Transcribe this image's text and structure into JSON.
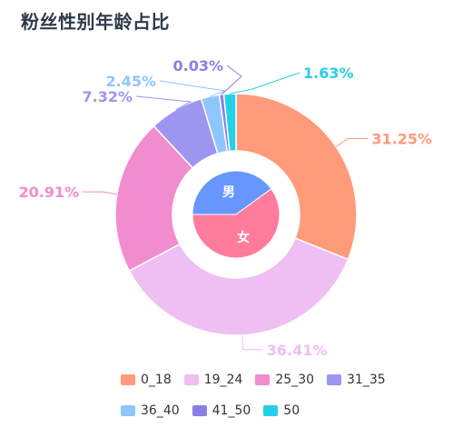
{
  "title": "粉丝性别年龄占比",
  "chart_data": {
    "type": "pie",
    "outer": {
      "series": [
        {
          "name": "0_18",
          "value": 31.25,
          "label": "31.25%",
          "color": "#ff9a7a"
        },
        {
          "name": "19_24",
          "value": 36.41,
          "label": "36.41%",
          "color": "#efbef3"
        },
        {
          "name": "25_30",
          "value": 20.91,
          "label": "20.91%",
          "color": "#f18ccf"
        },
        {
          "name": "31_35",
          "value": 7.32,
          "label": "7.32%",
          "color": "#9d96f1"
        },
        {
          "name": "36_40",
          "value": 2.45,
          "label": "2.45%",
          "color": "#8ec6ff"
        },
        {
          "name": "41_50",
          "value": 0.03,
          "label": "0.03%",
          "color": "#8a7fe6"
        },
        {
          "name": "50",
          "value": 1.63,
          "label": "1.63%",
          "color": "#24d0e7"
        }
      ]
    },
    "inner": {
      "series": [
        {
          "name": "男",
          "value": 40,
          "color": "#6796ff"
        },
        {
          "name": "女",
          "value": 60,
          "color": "#ff7b9c"
        }
      ]
    },
    "legend_position": "bottom"
  }
}
